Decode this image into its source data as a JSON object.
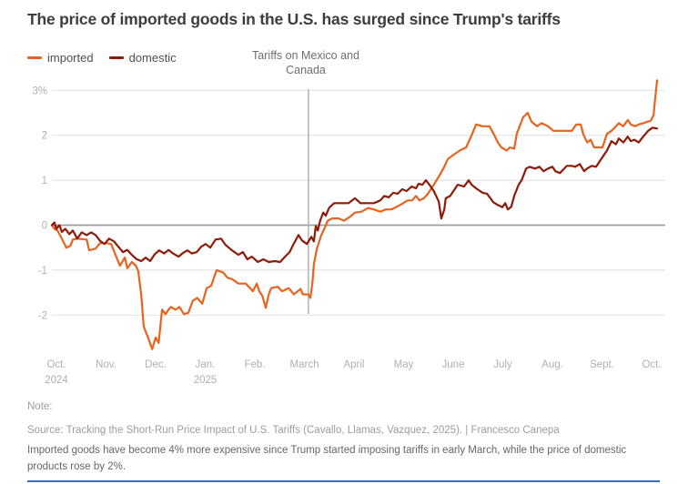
{
  "title": "The price of imported goods in the U.S. has surged since Trump's tariffs",
  "annotation": {
    "line1": "Tariffs on Mexico and",
    "line2": "Canada"
  },
  "notes": {
    "note": "Note:",
    "source": "Source: Tracking the Short-Run Price Impact of U.S. Tariffs (Cavallo, Llamas, Vazquez, 2025). | Francesco Canepa",
    "description": "Imported goods have become 4% more expensive since Trump started imposing tariffs in early March, while the price of domestic products rose by 2%."
  },
  "colors": {
    "imported": "#e8631e",
    "domestic": "#8e1b0a",
    "grid": "#e4e4e4",
    "zero_line": "#9c9c9c",
    "annotation_line": "#b3b3b3",
    "axis_text": "#b0b0b0",
    "bottom_rule": "#3a6fb4"
  },
  "chart_data": {
    "type": "line",
    "title": "The price of imported goods in the U.S. has surged since Trump's tariffs",
    "xlabel": "",
    "ylabel": "",
    "x_unit": "months since Oct 2024",
    "ylim": [
      -2.9,
      3.3
    ],
    "grid": "horizontal",
    "legend_position": "top-left",
    "y_ticks": [
      {
        "v": 3,
        "label": "3%"
      },
      {
        "v": 2,
        "label": "2"
      },
      {
        "v": 1,
        "label": "1"
      },
      {
        "v": 0,
        "label": "0"
      },
      {
        "v": -1,
        "label": "-1"
      },
      {
        "v": -2,
        "label": "-2"
      }
    ],
    "x_ticks": [
      {
        "t": 0,
        "label": "Oct.",
        "sub": "2024"
      },
      {
        "t": 1,
        "label": "Nov."
      },
      {
        "t": 2,
        "label": "Dec."
      },
      {
        "t": 3,
        "label": "Jan.",
        "sub": "2025"
      },
      {
        "t": 4,
        "label": "Feb."
      },
      {
        "t": 5,
        "label": "March"
      },
      {
        "t": 6,
        "label": "April"
      },
      {
        "t": 7,
        "label": "May"
      },
      {
        "t": 8,
        "label": "June"
      },
      {
        "t": 9,
        "label": "July"
      },
      {
        "t": 10,
        "label": "Aug."
      },
      {
        "t": 11,
        "label": "Sept."
      },
      {
        "t": 12,
        "label": "Oct."
      }
    ],
    "annotation": {
      "text": "Tariffs on Mexico and Canada",
      "t": 5.08
    },
    "series": [
      {
        "name": "imported",
        "color": "#e8631e",
        "points": [
          [
            -0.09,
            0
          ],
          [
            -0.04,
            -0.08
          ],
          [
            0.02,
            -0.12
          ],
          [
            0.09,
            -0.26
          ],
          [
            0.2,
            -0.5
          ],
          [
            0.28,
            -0.46
          ],
          [
            0.33,
            -0.32
          ],
          [
            0.42,
            -0.3
          ],
          [
            0.61,
            -0.32
          ],
          [
            0.66,
            -0.56
          ],
          [
            0.79,
            -0.52
          ],
          [
            0.88,
            -0.4
          ],
          [
            1.01,
            -0.4
          ],
          [
            1.1,
            -0.42
          ],
          [
            1.19,
            -0.66
          ],
          [
            1.28,
            -0.9
          ],
          [
            1.38,
            -0.72
          ],
          [
            1.43,
            -0.96
          ],
          [
            1.52,
            -0.82
          ],
          [
            1.6,
            -0.9
          ],
          [
            1.65,
            -1.02
          ],
          [
            1.71,
            -1.55
          ],
          [
            1.76,
            -2.26
          ],
          [
            1.83,
            -2.45
          ],
          [
            1.93,
            -2.76
          ],
          [
            2.0,
            -2.5
          ],
          [
            2.06,
            -2.62
          ],
          [
            2.13,
            -1.88
          ],
          [
            2.2,
            -1.98
          ],
          [
            2.26,
            -1.88
          ],
          [
            2.31,
            -1.82
          ],
          [
            2.4,
            -1.88
          ],
          [
            2.48,
            -1.82
          ],
          [
            2.57,
            -1.98
          ],
          [
            2.66,
            -1.95
          ],
          [
            2.75,
            -1.68
          ],
          [
            2.84,
            -1.62
          ],
          [
            2.94,
            -1.75
          ],
          [
            3.03,
            -1.4
          ],
          [
            3.12,
            -1.35
          ],
          [
            3.23,
            -1.0
          ],
          [
            3.36,
            -1.05
          ],
          [
            3.45,
            -1.17
          ],
          [
            3.54,
            -1.2
          ],
          [
            3.67,
            -1.3
          ],
          [
            3.82,
            -1.3
          ],
          [
            3.96,
            -1.47
          ],
          [
            4.04,
            -1.3
          ],
          [
            4.09,
            -1.47
          ],
          [
            4.15,
            -1.57
          ],
          [
            4.22,
            -1.84
          ],
          [
            4.28,
            -1.54
          ],
          [
            4.33,
            -1.4
          ],
          [
            4.46,
            -1.37
          ],
          [
            4.55,
            -1.47
          ],
          [
            4.68,
            -1.4
          ],
          [
            4.79,
            -1.54
          ],
          [
            4.92,
            -1.42
          ],
          [
            4.97,
            -1.54
          ],
          [
            5.08,
            -1.54
          ],
          [
            5.12,
            -1.62
          ],
          [
            5.16,
            -1.3
          ],
          [
            5.19,
            -0.87
          ],
          [
            5.25,
            -0.53
          ],
          [
            5.34,
            -0.22
          ],
          [
            5.41,
            -0.06
          ],
          [
            5.47,
            0.1
          ],
          [
            5.56,
            0.15
          ],
          [
            5.69,
            0.15
          ],
          [
            5.8,
            0.1
          ],
          [
            5.91,
            0.18
          ],
          [
            6.02,
            0.28
          ],
          [
            6.15,
            0.3
          ],
          [
            6.28,
            0.38
          ],
          [
            6.4,
            0.35
          ],
          [
            6.53,
            0.3
          ],
          [
            6.64,
            0.35
          ],
          [
            6.75,
            0.35
          ],
          [
            6.88,
            0.42
          ],
          [
            6.99,
            0.49
          ],
          [
            7.08,
            0.55
          ],
          [
            7.17,
            0.55
          ],
          [
            7.25,
            0.65
          ],
          [
            7.32,
            0.55
          ],
          [
            7.41,
            0.6
          ],
          [
            7.49,
            0.7
          ],
          [
            7.61,
            0.9
          ],
          [
            7.72,
            1.1
          ],
          [
            7.82,
            1.3
          ],
          [
            7.89,
            1.47
          ],
          [
            8.0,
            1.56
          ],
          [
            8.13,
            1.66
          ],
          [
            8.26,
            1.73
          ],
          [
            8.37,
            2.0
          ],
          [
            8.46,
            2.24
          ],
          [
            8.59,
            2.2
          ],
          [
            8.73,
            2.2
          ],
          [
            8.83,
            2.0
          ],
          [
            8.9,
            1.84
          ],
          [
            8.97,
            1.73
          ],
          [
            9.08,
            1.66
          ],
          [
            9.14,
            1.73
          ],
          [
            9.23,
            1.7
          ],
          [
            9.28,
            2.03
          ],
          [
            9.41,
            2.4
          ],
          [
            9.5,
            2.5
          ],
          [
            9.58,
            2.3
          ],
          [
            9.69,
            2.2
          ],
          [
            9.78,
            2.27
          ],
          [
            9.91,
            2.2
          ],
          [
            10.02,
            2.1
          ],
          [
            10.2,
            2.1
          ],
          [
            10.39,
            2.1
          ],
          [
            10.48,
            2.24
          ],
          [
            10.57,
            2.24
          ],
          [
            10.62,
            2.03
          ],
          [
            10.7,
            1.84
          ],
          [
            10.77,
            1.9
          ],
          [
            10.84,
            1.73
          ],
          [
            10.93,
            1.73
          ],
          [
            11.01,
            1.73
          ],
          [
            11.1,
            2.03
          ],
          [
            11.19,
            2.1
          ],
          [
            11.28,
            2.2
          ],
          [
            11.34,
            2.27
          ],
          [
            11.43,
            2.2
          ],
          [
            11.52,
            2.34
          ],
          [
            11.58,
            2.24
          ],
          [
            11.67,
            2.2
          ],
          [
            11.74,
            2.24
          ],
          [
            11.83,
            2.27
          ],
          [
            11.91,
            2.3
          ],
          [
            11.98,
            2.32
          ],
          [
            12.04,
            2.45
          ],
          [
            12.07,
            2.8
          ],
          [
            12.11,
            3.22
          ]
        ]
      },
      {
        "name": "domestic",
        "color": "#8e1b0a",
        "points": [
          [
            -0.09,
            0
          ],
          [
            -0.04,
            0.06
          ],
          [
            0,
            -0.08
          ],
          [
            0.06,
            0
          ],
          [
            0.11,
            -0.15
          ],
          [
            0.18,
            -0.08
          ],
          [
            0.26,
            -0.2
          ],
          [
            0.33,
            -0.12
          ],
          [
            0.42,
            -0.3
          ],
          [
            0.51,
            -0.16
          ],
          [
            0.61,
            -0.22
          ],
          [
            0.7,
            -0.16
          ],
          [
            0.79,
            -0.22
          ],
          [
            0.88,
            -0.35
          ],
          [
            0.97,
            -0.42
          ],
          [
            1.06,
            -0.3
          ],
          [
            1.16,
            -0.36
          ],
          [
            1.25,
            -0.48
          ],
          [
            1.34,
            -0.6
          ],
          [
            1.43,
            -0.55
          ],
          [
            1.52,
            -0.66
          ],
          [
            1.61,
            -0.75
          ],
          [
            1.71,
            -0.8
          ],
          [
            1.8,
            -0.72
          ],
          [
            1.89,
            -0.8
          ],
          [
            1.98,
            -0.65
          ],
          [
            2.07,
            -0.56
          ],
          [
            2.17,
            -0.63
          ],
          [
            2.26,
            -0.55
          ],
          [
            2.35,
            -0.63
          ],
          [
            2.46,
            -0.7
          ],
          [
            2.55,
            -0.62
          ],
          [
            2.64,
            -0.56
          ],
          [
            2.73,
            -0.63
          ],
          [
            2.83,
            -0.6
          ],
          [
            2.92,
            -0.48
          ],
          [
            3.01,
            -0.42
          ],
          [
            3.1,
            -0.5
          ],
          [
            3.21,
            -0.32
          ],
          [
            3.32,
            -0.3
          ],
          [
            3.41,
            -0.44
          ],
          [
            3.54,
            -0.56
          ],
          [
            3.67,
            -0.66
          ],
          [
            3.76,
            -0.6
          ],
          [
            3.85,
            -0.76
          ],
          [
            3.94,
            -0.7
          ],
          [
            4.06,
            -0.82
          ],
          [
            4.17,
            -0.76
          ],
          [
            4.28,
            -0.82
          ],
          [
            4.4,
            -0.8
          ],
          [
            4.51,
            -0.82
          ],
          [
            4.61,
            -0.7
          ],
          [
            4.7,
            -0.6
          ],
          [
            4.79,
            -0.4
          ],
          [
            4.88,
            -0.22
          ],
          [
            4.95,
            -0.34
          ],
          [
            5.05,
            -0.42
          ],
          [
            5.14,
            -0.26
          ],
          [
            5.19,
            -0.36
          ],
          [
            5.23,
            -0.02
          ],
          [
            5.27,
            -0.12
          ],
          [
            5.32,
            0.11
          ],
          [
            5.38,
            0.28
          ],
          [
            5.43,
            0.21
          ],
          [
            5.5,
            0.39
          ],
          [
            5.6,
            0.49
          ],
          [
            5.74,
            0.49
          ],
          [
            5.89,
            0.49
          ],
          [
            6.02,
            0.6
          ],
          [
            6.13,
            0.49
          ],
          [
            6.28,
            0.49
          ],
          [
            6.4,
            0.49
          ],
          [
            6.53,
            0.55
          ],
          [
            6.61,
            0.65
          ],
          [
            6.7,
            0.62
          ],
          [
            6.79,
            0.72
          ],
          [
            6.88,
            0.7
          ],
          [
            6.97,
            0.8
          ],
          [
            7.06,
            0.76
          ],
          [
            7.16,
            0.86
          ],
          [
            7.25,
            0.82
          ],
          [
            7.3,
            0.92
          ],
          [
            7.38,
            0.9
          ],
          [
            7.45,
            1.0
          ],
          [
            7.52,
            0.9
          ],
          [
            7.61,
            0.76
          ],
          [
            7.71,
            0.52
          ],
          [
            7.76,
            0.15
          ],
          [
            7.82,
            0.35
          ],
          [
            7.85,
            0.6
          ],
          [
            7.94,
            0.65
          ],
          [
            8.09,
            0.9
          ],
          [
            8.22,
            0.86
          ],
          [
            8.31,
            1.0
          ],
          [
            8.37,
            0.9
          ],
          [
            8.46,
            0.82
          ],
          [
            8.59,
            0.72
          ],
          [
            8.68,
            0.7
          ],
          [
            8.81,
            0.51
          ],
          [
            8.9,
            0.45
          ],
          [
            8.99,
            0.4
          ],
          [
            9.05,
            0.49
          ],
          [
            9.1,
            0.35
          ],
          [
            9.17,
            0.41
          ],
          [
            9.23,
            0.65
          ],
          [
            9.32,
            0.9
          ],
          [
            9.38,
            1.0
          ],
          [
            9.47,
            1.26
          ],
          [
            9.54,
            1.3
          ],
          [
            9.65,
            1.26
          ],
          [
            9.74,
            1.3
          ],
          [
            9.82,
            1.2
          ],
          [
            9.91,
            1.26
          ],
          [
            10.0,
            1.3
          ],
          [
            10.06,
            1.2
          ],
          [
            10.15,
            1.16
          ],
          [
            10.24,
            1.26
          ],
          [
            10.29,
            1.32
          ],
          [
            10.39,
            1.32
          ],
          [
            10.46,
            1.3
          ],
          [
            10.55,
            1.36
          ],
          [
            10.64,
            1.2
          ],
          [
            10.7,
            1.26
          ],
          [
            10.79,
            1.32
          ],
          [
            10.88,
            1.3
          ],
          [
            10.97,
            1.45
          ],
          [
            11.1,
            1.66
          ],
          [
            11.19,
            1.87
          ],
          [
            11.28,
            1.8
          ],
          [
            11.34,
            1.93
          ],
          [
            11.43,
            1.84
          ],
          [
            11.52,
            1.97
          ],
          [
            11.58,
            1.87
          ],
          [
            11.65,
            1.9
          ],
          [
            11.74,
            1.84
          ],
          [
            11.83,
            1.97
          ],
          [
            11.93,
            2.1
          ],
          [
            12.02,
            2.17
          ],
          [
            12.11,
            2.15
          ]
        ]
      }
    ]
  }
}
